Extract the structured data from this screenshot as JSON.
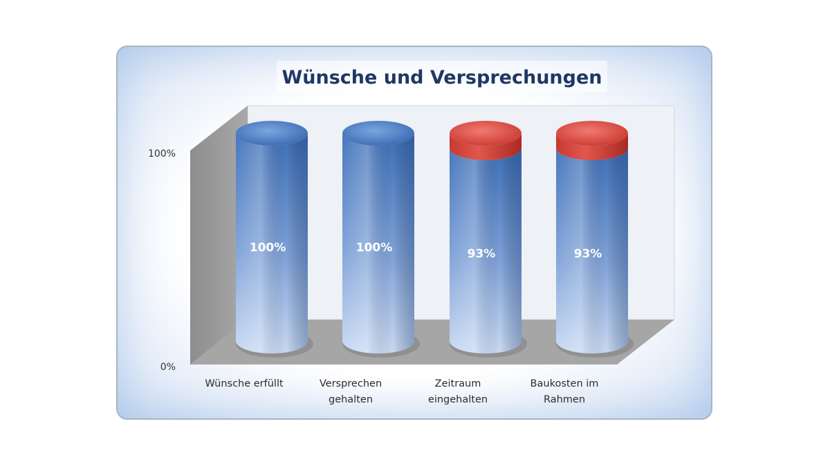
{
  "chart_data": {
    "type": "bar",
    "title": "Wünsche und Versprechungen",
    "categories": [
      [
        "Wünsche erfüllt"
      ],
      [
        "Versprechen",
        "gehalten"
      ],
      [
        "Zeitraum",
        "eingehalten"
      ],
      [
        "Baukosten im",
        "Rahmen"
      ]
    ],
    "values": [
      100,
      100,
      93,
      93
    ],
    "value_labels": [
      "100%",
      "100%",
      "93%",
      "93%"
    ],
    "yticks": [
      "0%",
      "100%"
    ],
    "ylim": [
      0,
      100
    ],
    "colors": {
      "bar": "#4a7ec4",
      "remainder": "#d9463c",
      "title": "#1f3864"
    },
    "style": "3d-cylinder",
    "legend": "none",
    "grid": false
  }
}
